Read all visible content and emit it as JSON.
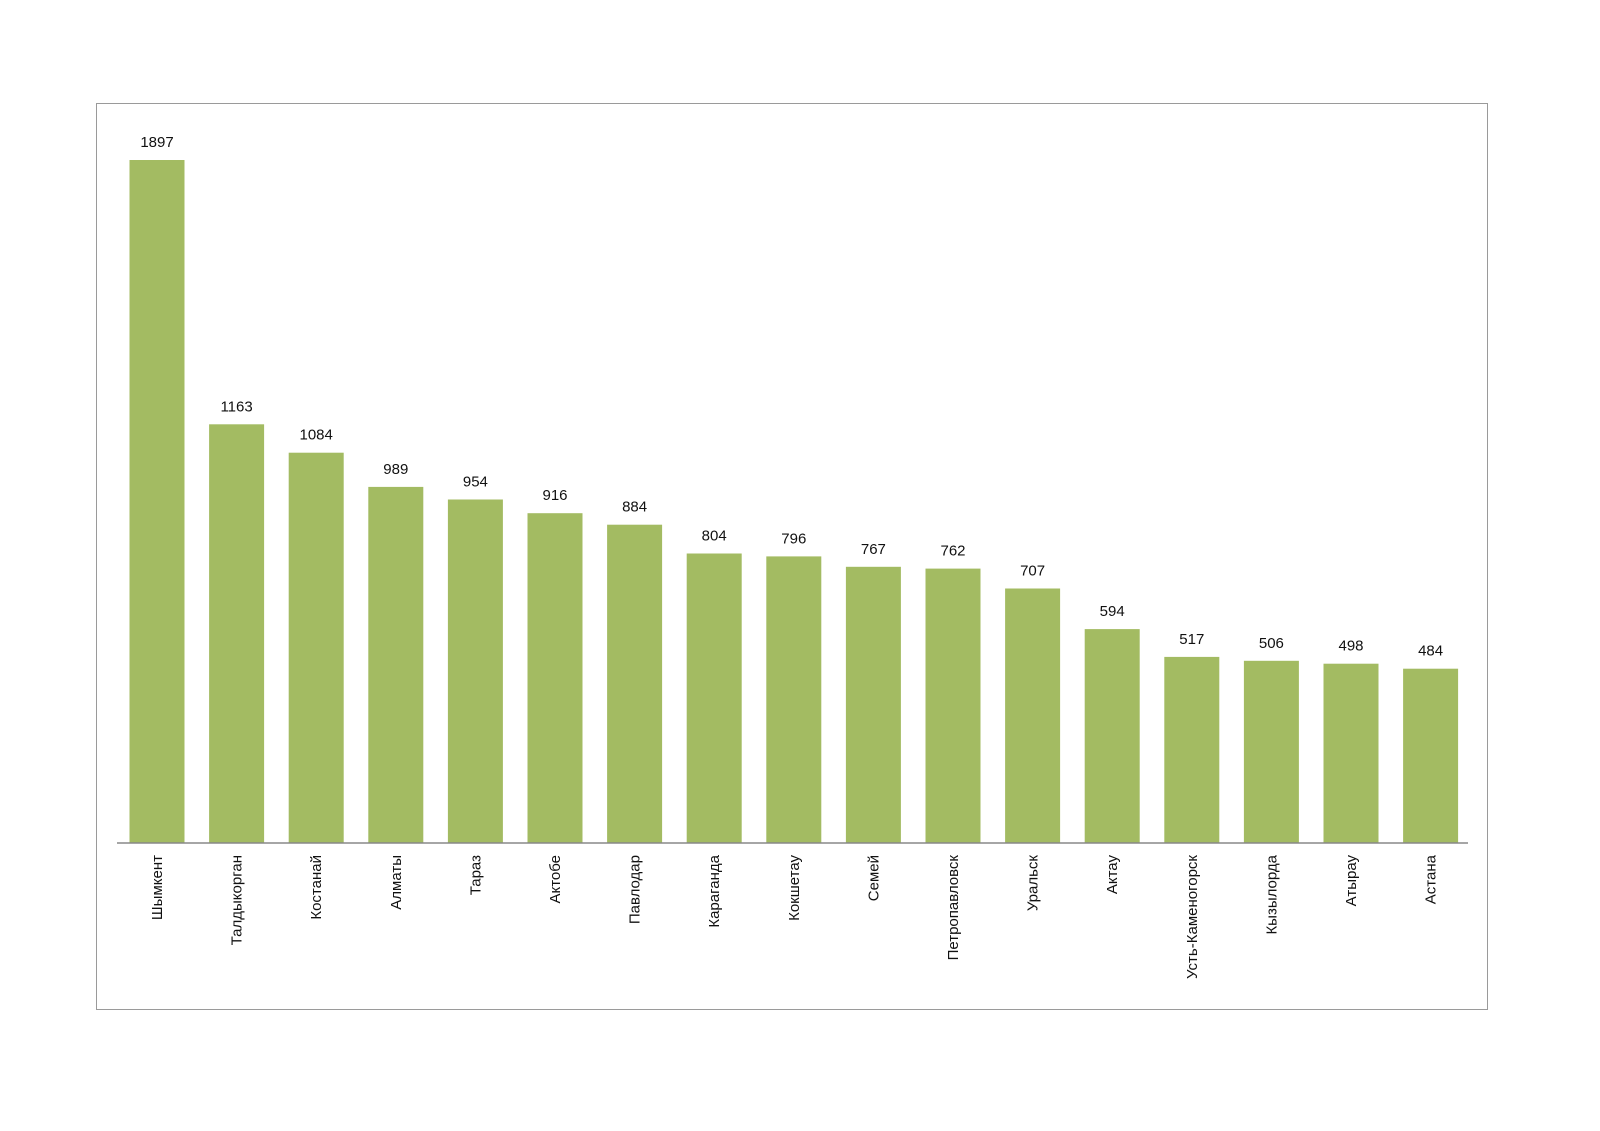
{
  "chart_data": {
    "type": "bar",
    "title": "",
    "xlabel": "",
    "ylabel": "",
    "categories": [
      "Шымкент",
      "Талдыкорган",
      "Костанай",
      "Алматы",
      "Тараз",
      "Актобе",
      "Павлодар",
      "Караганда",
      "Кокшетау",
      "Семей",
      "Петропавловск",
      "Уральск",
      "Актау",
      "Усть-Каменогорск",
      "Кызылорда",
      "Атырау",
      "Астана"
    ],
    "values": [
      1897,
      1163,
      1084,
      989,
      954,
      916,
      884,
      804,
      796,
      767,
      762,
      707,
      594,
      517,
      506,
      498,
      484
    ],
    "ylim": [
      0,
      1897
    ],
    "grid": false,
    "legend": "none",
    "data_labels": true,
    "bar_color": "#a3bb62",
    "axis_color": "#888888"
  }
}
